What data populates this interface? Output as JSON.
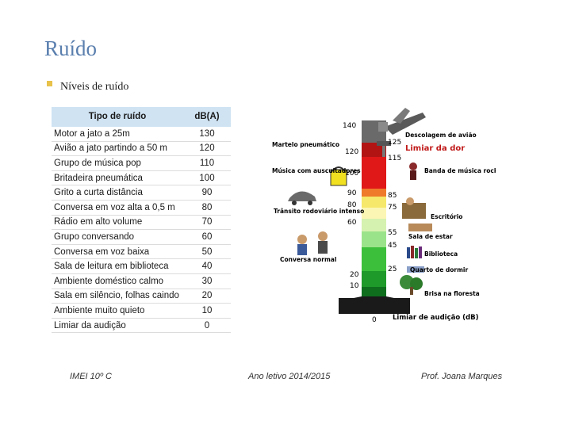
{
  "slide": {
    "title": "Ruído",
    "subtitle": "Níveis de ruído"
  },
  "table": {
    "headers": {
      "source": "Tipo de ruído",
      "level": "dB(A)"
    },
    "rows": [
      {
        "source": "Motor a jato a 25m",
        "level": "130"
      },
      {
        "source": "Avião a jato partindo a 50 m",
        "level": "120"
      },
      {
        "source": "Grupo de música pop",
        "level": "110"
      },
      {
        "source": "Britadeira pneumática",
        "level": "100"
      },
      {
        "source": "Grito a curta distância",
        "level": "90"
      },
      {
        "source": "Conversa em voz alta a 0,5 m",
        "level": "80"
      },
      {
        "source": "Rádio em alto volume",
        "level": "70"
      },
      {
        "source": "Grupo conversando",
        "level": "60"
      },
      {
        "source": "Conversa em voz baixa",
        "level": "50"
      },
      {
        "source": "Sala de leitura em biblioteca",
        "level": "40"
      },
      {
        "source": "Ambiente doméstico calmo",
        "level": "30"
      },
      {
        "source": "Sala em silêncio, folhas caindo",
        "level": "20"
      },
      {
        "source": "Ambiente muito quieto",
        "level": "10"
      },
      {
        "source": "Limiar da audição",
        "level": "0"
      }
    ]
  },
  "scale": {
    "left_numbers": [
      "140",
      "120",
      "100",
      "90",
      "80",
      "60",
      "20",
      "10"
    ],
    "right_numbers": [
      "125",
      "115",
      "85",
      "75",
      "55",
      "45",
      "25"
    ],
    "zero_label": "0",
    "labels": {
      "takeoff": "Descolagem de avião",
      "pain": "Limiar da dor",
      "hammer": "Martelo pneumático",
      "music": "Música com auscultadores",
      "rock": "Banda de música rock",
      "traffic": "Trânsito rodoviário intenso",
      "office": "Escritório",
      "living": "Sala de estar",
      "library": "Biblioteca",
      "conversation": "Conversa normal",
      "bedroom": "Quarto de dormir",
      "breeze": "Brisa na floresta",
      "hearing": "Limiar de audição (dB)"
    },
    "colors": {
      "top": "#6a6a6a",
      "red": "#e01818",
      "yellow": "#f6e86a",
      "green": "#3cc03c",
      "dark_green": "#0e6e1e",
      "base": "#1a1a1a"
    }
  },
  "footer": {
    "left": "IMEI 10º C",
    "center": "Ano letivo 2014/2015",
    "right": "Prof. Joana Marques"
  }
}
